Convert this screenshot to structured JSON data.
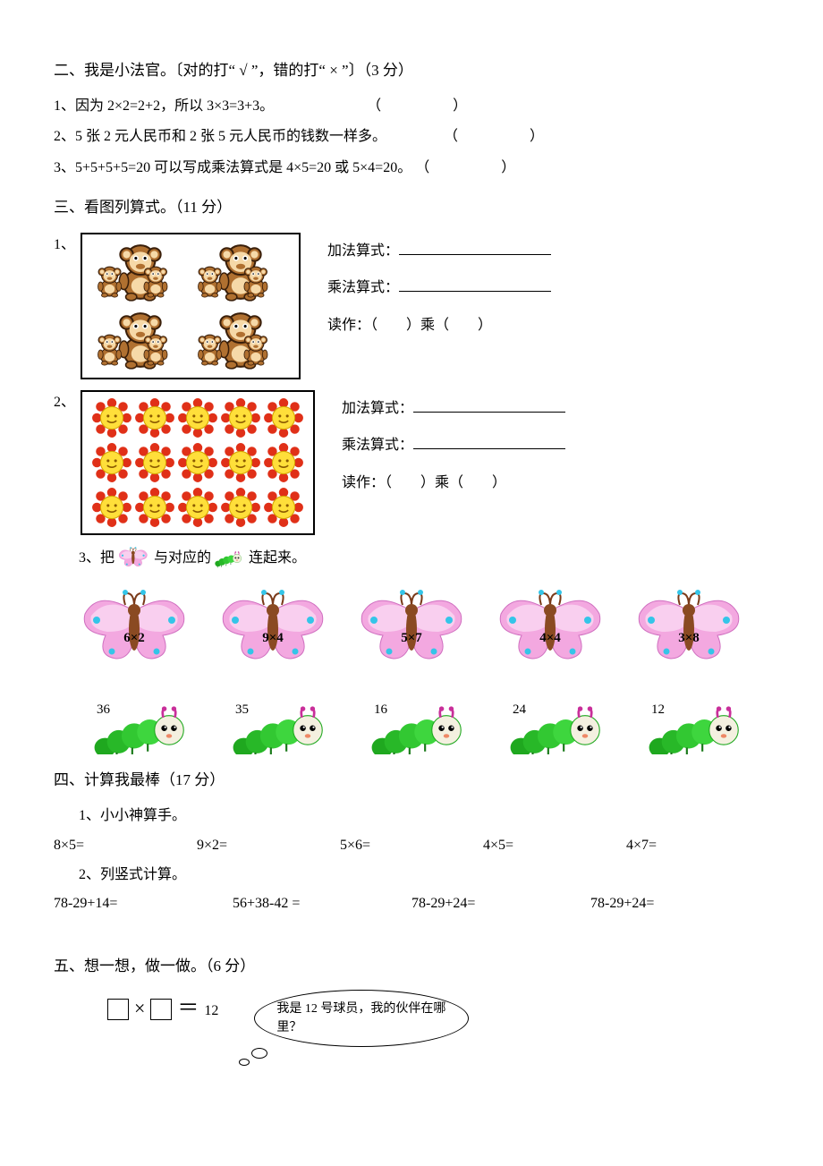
{
  "s2": {
    "title": "二、我是小法官。〔对的打“ √ ”，错的打“ × ”〕（3 分）",
    "q1": "1、因为 2×2=2+2，所以 3×3=3+3。",
    "q2": "2、5 张 2 元人民币和 2 张 5 元人民币的钱数一样多。",
    "q3": "3、5+5+5+5=20 可以写成乘法算式是 4×5=20 或 5×4=20。"
  },
  "s3": {
    "title": "三、看图列算式。（11 分）",
    "q1": {
      "num": "1、",
      "add": "加法算式：",
      "mul": "乘法算式：",
      "read": "读作：（　　）乘（　　）",
      "rows": 2,
      "cols": 2
    },
    "q2": {
      "num": "2、",
      "add": "加法算式：",
      "mul": "乘法算式：",
      "read": "读作：（　　）乘（　　）",
      "rows": 3,
      "cols": 5
    },
    "q3": {
      "prefix": "3、把",
      "mid": "与对应的",
      "suffix": "连起来。"
    },
    "butterflies": [
      "6×2",
      "9×4",
      "5×7",
      "4×4",
      "3×8"
    ],
    "caterpillars": [
      "36",
      "35",
      "16",
      "24",
      "12"
    ]
  },
  "s4": {
    "title": "四、计算我最棒（17 分）",
    "sub1": "1、小小神算手。",
    "row1": [
      "8×5=",
      "9×2=",
      "5×6=",
      "4×5=",
      "4×7="
    ],
    "sub2": "2、列竖式计算。",
    "row2": [
      "78-29+14=",
      "56+38-42 =",
      "78-29+24=",
      "78-29+24="
    ]
  },
  "s5": {
    "title": "五、想一想，做一做。（6 分）",
    "eq": "＝",
    "val": "12",
    "bubble": "我是 12 号球员，我的伙伴在哪里？"
  },
  "colors": {
    "monkey_body": "#b07030",
    "monkey_face": "#f6d9a8",
    "monkey_outline": "#3a1f0a",
    "sun_petal": "#e03018",
    "sun_center": "#ffdf3a",
    "sun_face": "#8a5a00",
    "bf_wing": "#f3a8e0",
    "bf_wing2": "#e56fd0",
    "bf_dot": "#34c5e8",
    "bf_body": "#7a3a1a",
    "cat_body": "#1fa81f",
    "cat_body2": "#3ed63e",
    "cat_head": "#f4f0e0",
    "cat_eye": "#000",
    "cat_ant": "#c92f9a"
  }
}
